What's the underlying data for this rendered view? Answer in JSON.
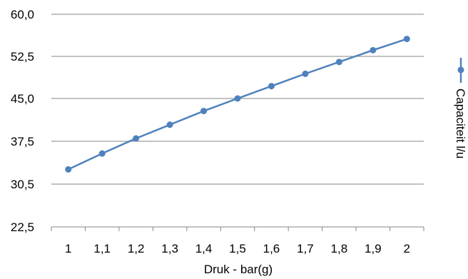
{
  "chart_data": {
    "type": "line",
    "title": "",
    "xlabel": "Druk - bar(g)",
    "ylabel": "",
    "categories": [
      "1",
      "1,1",
      "1,2",
      "1,3",
      "1,4",
      "1,5",
      "1,6",
      "1,7",
      "1,8",
      "1,9",
      "2"
    ],
    "y_tick_labels": [
      "22,5",
      "30,5",
      "37,5",
      "45,0",
      "52,5",
      "60,0"
    ],
    "grid": true,
    "legend_position": "right",
    "series": [
      {
        "name": "Capaciteit l/u",
        "color": "#4f81bd",
        "values": [
          32.9,
          35.5,
          38.0,
          40.4,
          42.8,
          45.0,
          47.2,
          49.4,
          51.5,
          53.6,
          55.6
        ]
      }
    ]
  }
}
